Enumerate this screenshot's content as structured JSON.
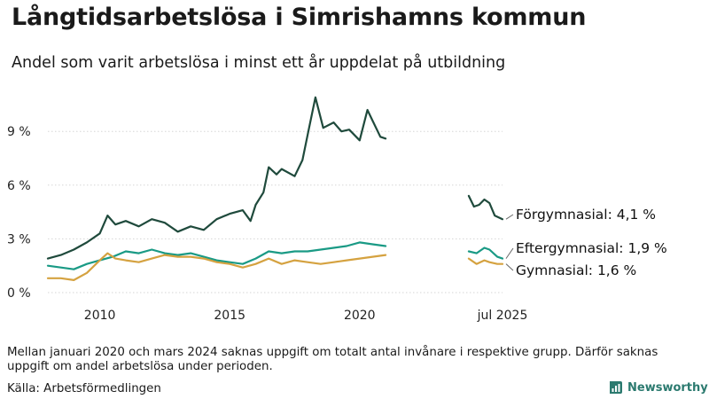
{
  "header": {
    "title": "Långtidsarbetslösa i Simrishamns kommun",
    "subtitle": "Andel som varit arbetslösa i minst ett år uppdelat på utbildning"
  },
  "footer": {
    "note": "Mellan januari 2020 och mars 2024 saknas uppgift om totalt antal invånare i respektive grupp. Därför saknas uppgift om andel arbetslösa under perioden.",
    "source": "Källa: Arbetsförmedlingen",
    "logo_text": "Newsworthy"
  },
  "colors": {
    "forgymnasial": "#1f4a3c",
    "eftergymnasial": "#1a9a85",
    "gymnasial": "#d5a240",
    "grid": "#d6d6d6",
    "logo": "#2b7a6f"
  },
  "chart_data": {
    "type": "line",
    "title": "Långtidsarbetslösa i Simrishamns kommun",
    "subtitle": "Andel som varit arbetslösa i minst ett år uppdelat på utbildning",
    "xlabel": "",
    "ylabel": "",
    "ylim": [
      0,
      11
    ],
    "yticks": [
      0,
      3,
      6,
      9
    ],
    "ytick_labels": [
      "0 %",
      "3 %",
      "6 %",
      "9 %"
    ],
    "xticks": [
      2010,
      2015,
      2020,
      2025.5
    ],
    "xtick_labels": [
      "2010",
      "2015",
      "2020",
      "jul 2025"
    ],
    "grid": true,
    "legend": "end-of-line labels",
    "end_labels": [
      "Förgymnasial: 4,1 %",
      "Eftergymnasial: 1,9 %",
      "Gymnasial: 1,6 %"
    ],
    "series": [
      {
        "name": "Förgymnasial",
        "color": "#1f4a3c",
        "segments": [
          [
            [
              2008.0,
              1.9
            ],
            [
              2008.5,
              2.1
            ],
            [
              2009.0,
              2.4
            ],
            [
              2009.5,
              2.8
            ],
            [
              2010.0,
              3.3
            ],
            [
              2010.3,
              4.3
            ],
            [
              2010.6,
              3.8
            ],
            [
              2011.0,
              4.0
            ],
            [
              2011.5,
              3.7
            ],
            [
              2012.0,
              4.1
            ],
            [
              2012.5,
              3.9
            ],
            [
              2013.0,
              3.4
            ],
            [
              2013.5,
              3.7
            ],
            [
              2014.0,
              3.5
            ],
            [
              2014.5,
              4.1
            ],
            [
              2015.0,
              4.4
            ],
            [
              2015.5,
              4.6
            ],
            [
              2015.8,
              4.0
            ],
            [
              2016.0,
              4.9
            ],
            [
              2016.3,
              5.6
            ],
            [
              2016.5,
              7.0
            ],
            [
              2016.8,
              6.6
            ],
            [
              2017.0,
              6.9
            ],
            [
              2017.5,
              6.5
            ],
            [
              2017.8,
              7.4
            ],
            [
              2018.0,
              8.8
            ],
            [
              2018.3,
              10.9
            ],
            [
              2018.6,
              9.2
            ],
            [
              2019.0,
              9.5
            ],
            [
              2019.3,
              9.0
            ],
            [
              2019.6,
              9.1
            ],
            [
              2020.0,
              8.5
            ],
            [
              2020.3,
              10.2
            ],
            [
              2020.5,
              9.6
            ],
            [
              2020.8,
              8.7
            ],
            [
              2021.0,
              8.6
            ]
          ],
          [
            [
              2024.2,
              5.4
            ],
            [
              2024.4,
              4.8
            ],
            [
              2024.6,
              4.9
            ],
            [
              2024.8,
              5.2
            ],
            [
              2025.0,
              5.0
            ],
            [
              2025.2,
              4.3
            ],
            [
              2025.5,
              4.1
            ]
          ]
        ],
        "end_value": 4.1
      },
      {
        "name": "Eftergymnasial",
        "color": "#1a9a85",
        "segments": [
          [
            [
              2008.0,
              1.5
            ],
            [
              2008.5,
              1.4
            ],
            [
              2009.0,
              1.3
            ],
            [
              2009.5,
              1.6
            ],
            [
              2010.0,
              1.8
            ],
            [
              2010.5,
              2.0
            ],
            [
              2011.0,
              2.3
            ],
            [
              2011.5,
              2.2
            ],
            [
              2012.0,
              2.4
            ],
            [
              2012.5,
              2.2
            ],
            [
              2013.0,
              2.1
            ],
            [
              2013.5,
              2.2
            ],
            [
              2014.0,
              2.0
            ],
            [
              2014.5,
              1.8
            ],
            [
              2015.0,
              1.7
            ],
            [
              2015.5,
              1.6
            ],
            [
              2016.0,
              1.9
            ],
            [
              2016.5,
              2.3
            ],
            [
              2017.0,
              2.2
            ],
            [
              2017.5,
              2.3
            ],
            [
              2018.0,
              2.3
            ],
            [
              2018.5,
              2.4
            ],
            [
              2019.0,
              2.5
            ],
            [
              2019.5,
              2.6
            ],
            [
              2020.0,
              2.8
            ],
            [
              2020.5,
              2.7
            ],
            [
              2021.0,
              2.6
            ]
          ],
          [
            [
              2024.2,
              2.3
            ],
            [
              2024.5,
              2.2
            ],
            [
              2024.8,
              2.5
            ],
            [
              2025.0,
              2.4
            ],
            [
              2025.3,
              2.0
            ],
            [
              2025.5,
              1.9
            ]
          ]
        ],
        "end_value": 1.9
      },
      {
        "name": "Gymnasial",
        "color": "#d5a240",
        "segments": [
          [
            [
              2008.0,
              0.8
            ],
            [
              2008.5,
              0.8
            ],
            [
              2009.0,
              0.7
            ],
            [
              2009.5,
              1.1
            ],
            [
              2010.0,
              1.8
            ],
            [
              2010.3,
              2.2
            ],
            [
              2010.6,
              1.9
            ],
            [
              2011.0,
              1.8
            ],
            [
              2011.5,
              1.7
            ],
            [
              2012.0,
              1.9
            ],
            [
              2012.5,
              2.1
            ],
            [
              2013.0,
              2.0
            ],
            [
              2013.5,
              2.0
            ],
            [
              2014.0,
              1.9
            ],
            [
              2014.5,
              1.7
            ],
            [
              2015.0,
              1.6
            ],
            [
              2015.5,
              1.4
            ],
            [
              2016.0,
              1.6
            ],
            [
              2016.5,
              1.9
            ],
            [
              2017.0,
              1.6
            ],
            [
              2017.5,
              1.8
            ],
            [
              2018.0,
              1.7
            ],
            [
              2018.5,
              1.6
            ],
            [
              2019.0,
              1.7
            ],
            [
              2019.5,
              1.8
            ],
            [
              2020.0,
              1.9
            ],
            [
              2020.5,
              2.0
            ],
            [
              2021.0,
              2.1
            ]
          ],
          [
            [
              2024.2,
              1.9
            ],
            [
              2024.5,
              1.6
            ],
            [
              2024.8,
              1.8
            ],
            [
              2025.0,
              1.7
            ],
            [
              2025.3,
              1.6
            ],
            [
              2025.5,
              1.6
            ]
          ]
        ],
        "end_value": 1.6
      }
    ]
  }
}
